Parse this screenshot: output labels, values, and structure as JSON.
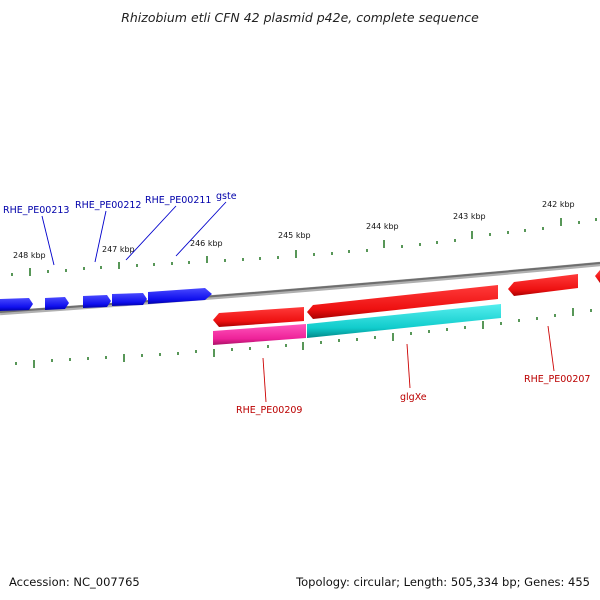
{
  "title": "Rhizobium etli CFN 42 plasmid p42e, complete sequence",
  "footer": {
    "accession": "Accession: NC_007765",
    "summary": "Topology: circular; Length: 505,334 bp; Genes: 455"
  },
  "colors": {
    "backbone": "#888888",
    "ticks": "#2e7d2e",
    "forward_cds": "#1010ee",
    "reverse_cds": "#ee1111",
    "magenta_cds": "#ee2299",
    "cyan_cds": "#11cccc",
    "label_blue": "#0000aa",
    "label_red": "#bb0000"
  },
  "ticks": {
    "labels": [
      "248 kbp",
      "247 kbp",
      "246 kbp",
      "245 kbp",
      "244 kbp",
      "243 kbp",
      "242 kbp"
    ]
  },
  "genes": {
    "blue_labels": [
      "RHE_PE00213",
      "RHE_PE00212",
      "RHE_PE00211",
      "gste"
    ],
    "red_labels": [
      "RHE_PE00209",
      "glgXe",
      "RHE_PE00207"
    ]
  }
}
